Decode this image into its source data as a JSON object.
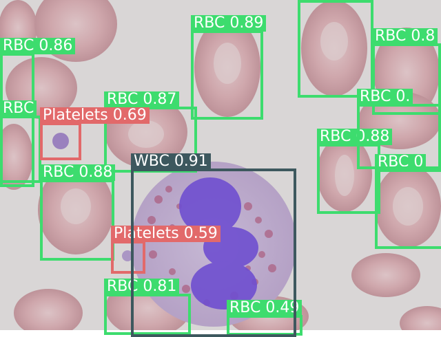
{
  "image": {
    "description_icon": "blood-smear-photo",
    "background": "#d9d6d6",
    "colors": {
      "RBC": "#3ddc6e",
      "Platelets": "#e2696a",
      "WBC": "#3d585e"
    }
  },
  "detections": [
    {
      "label": "RBC 0.86",
      "class": "RBC"
    },
    {
      "label": "RBC 0.89",
      "class": "RBC"
    },
    {
      "label": "RBC 0.87",
      "class": "RBC"
    },
    {
      "label": "RBC 0.87",
      "class": "RBC"
    },
    {
      "label": "RBC 0.8",
      "class": "RBC"
    },
    {
      "label": "RBC 0.88",
      "class": "RBC"
    },
    {
      "label": "RBC 0.88",
      "class": "RBC"
    },
    {
      "label": "RBC 0.81",
      "class": "RBC"
    },
    {
      "label": "RBC 0.49",
      "class": "RBC"
    },
    {
      "label": "RBC",
      "class": "RBC"
    },
    {
      "label": "RBC 0",
      "class": "RBC"
    },
    {
      "label": "RBC 0.",
      "class": "RBC"
    },
    {
      "label": "Platelets 0.69",
      "class": "Platelets"
    },
    {
      "label": "Platelets 0.59",
      "class": "Platelets"
    },
    {
      "label": "WBC 0.91",
      "class": "WBC"
    }
  ]
}
